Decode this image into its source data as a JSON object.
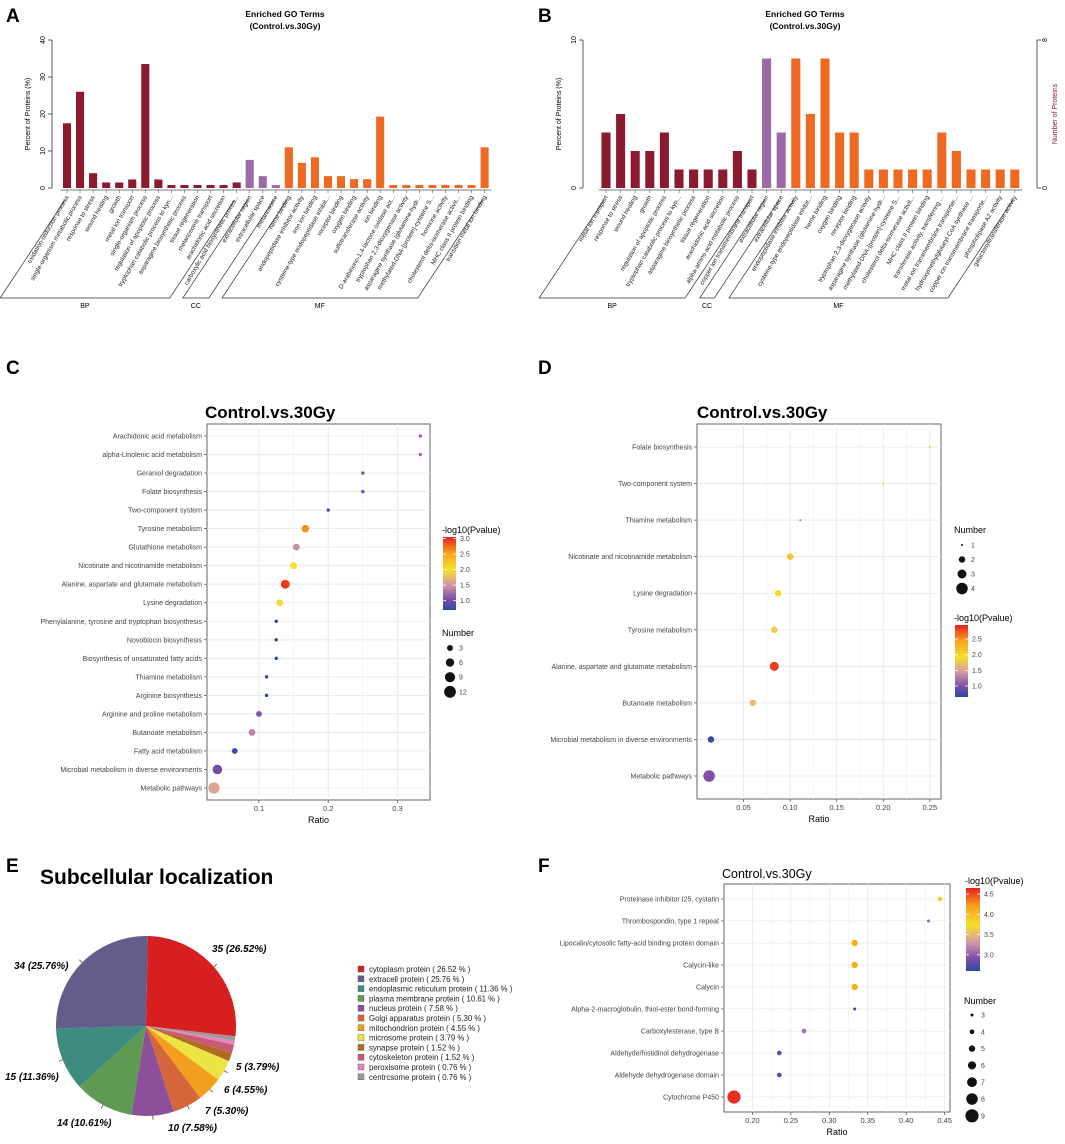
{
  "panels": {
    "a": "A",
    "b": "B",
    "c": "C",
    "d": "D",
    "e": "E",
    "f": "F"
  },
  "colors": {
    "BP": "#8b1a2e",
    "CC": "#9b6aa6",
    "MF": "#ee6a22"
  },
  "chart_data": [
    {
      "id": "A",
      "type": "bar",
      "title": "Enriched GO Terms",
      "subtitle": "(Control.vs.30Gy)",
      "ylabel": "Percent of Proteins (%)",
      "ylim": [
        0,
        40
      ],
      "yticks": [
        0,
        10,
        20,
        30,
        40
      ],
      "groups": [
        {
          "name": "BP",
          "categories": [
            "oxidation-reduction process",
            "single-organism metabolic process",
            "response to stress",
            "wound healing",
            "growth",
            "metal ion transport",
            "single-organism process",
            "regulation of apoptotic process",
            "tryptophan catabolic process to kyn...",
            "asparagine biosynthetic process",
            "tissue regeneration",
            "melanosome transport",
            "arachidonic acid secretion",
            "carboxylic acid biosynthetic proces..."
          ],
          "values": [
            17.5,
            26,
            4,
            1.5,
            1.5,
            2.3,
            33.5,
            2.3,
            0.8,
            0.8,
            0.8,
            0.8,
            0.8,
            1.5
          ]
        },
        {
          "name": "CC",
          "categories": [
            "extracellular region",
            "extracellular space",
            "melanosome"
          ],
          "values": [
            7.6,
            3.2,
            0.8
          ]
        },
        {
          "name": "MF",
          "categories": [
            "heme binding",
            "endopeptidase inhibitor activity",
            "iron ion binding",
            "cysteine-type endopeptidase inhibit...",
            "receptor binding",
            "oxygen binding",
            "sulfotransferase activity",
            "ion binding",
            "D-arabinono-1,4-lactone oxidase act...",
            "tryptophan 2,3-dioxygenase activity",
            "asparagine synthase (glutamine-hydr...",
            "methylated-DNA-[protein]-cysteine S...",
            "hormone activity",
            "cholesterol delta-isomerase activit...",
            "MHC class II protein binding",
            "transition metal ion binding"
          ],
          "values": [
            11,
            6.8,
            8.3,
            3.2,
            3.2,
            2.4,
            2.4,
            19.3,
            0.8,
            0.8,
            0.8,
            0.8,
            0.8,
            0.8,
            0.8,
            11
          ]
        }
      ]
    },
    {
      "id": "B",
      "type": "bar",
      "title": "Enriched GO Terms",
      "subtitle": "(Control.vs.30Gy)",
      "ylabel": "Percent of Proteins (%)",
      "ylim": [
        0,
        10
      ],
      "yticks": [
        0,
        10
      ],
      "y2label": "Number of Proteins",
      "y2lim": [
        0,
        8
      ],
      "y2ticks": [
        0,
        8
      ],
      "groups": [
        {
          "name": "BP",
          "categories": [
            "metal ion transport",
            "response to stress",
            "wound healing",
            "growth",
            "regulation of apoptotic process",
            "tryptophan catabolic process to kyn...",
            "asparagine biosynthetic process",
            "tissue regeneration",
            "arachidonic acid secretion",
            "alpha-amino acid metabolic process",
            "copper ion transmembrane transport"
          ],
          "values": [
            3.75,
            5,
            2.5,
            2.5,
            3.75,
            1.25,
            1.25,
            1.25,
            1.25,
            2.5,
            1.25
          ]
        },
        {
          "name": "CC",
          "categories": [
            "extracellular region",
            "extracellular space"
          ],
          "values": [
            8.75,
            3.75
          ]
        },
        {
          "name": "MF",
          "categories": [
            "endopeptidase inhibitor activity",
            "cysteine-type endopeptidase inhibit...",
            "heme binding",
            "oxygen binding",
            "receptor binding",
            "tryptophan 2,3-dioxygenase activity",
            "asparagine synthase (glutamine-hydr...",
            "methylated-DNA-[protein]-cysteine S...",
            "cholesterol delta-isomerase activit...",
            "MHC class II protein binding",
            "transferase activity, transferring ...",
            "metal ion transmembrane transporter...",
            "hydroxymethylglutaryl-CoA synthase ...",
            "copper ion transmembrane transporte...",
            "phospholipase A2 activity",
            "galactosyltransferase activity"
          ],
          "values": [
            8.75,
            5,
            8.75,
            3.75,
            3.75,
            1.25,
            1.25,
            1.25,
            1.25,
            1.25,
            3.75,
            2.5,
            1.25,
            1.25,
            1.25,
            1.25
          ]
        }
      ]
    },
    {
      "id": "C",
      "type": "scatter",
      "title": "Control.vs.30Gy",
      "xlabel": "Ratio",
      "xlim": [
        0.025,
        0.347
      ],
      "xticks": [
        "0.1",
        "0.2",
        "0.3"
      ],
      "color_title": "-log10(Pvalue)",
      "color_ticks": [
        "3.0",
        "2.5",
        "2.0",
        "1.5",
        "1.0"
      ],
      "color_range": [
        0.7,
        3.05
      ],
      "size_title": "Number",
      "size_ticks": [
        3,
        6,
        9,
        12
      ],
      "points": [
        {
          "term": "Arachidonic acid metabolism",
          "ratio": 0.333,
          "number": 1,
          "logp": 1.2
        },
        {
          "term": "alpha-Linolenic acid metabolism",
          "ratio": 0.333,
          "number": 1,
          "logp": 1.2
        },
        {
          "term": "Geraniol degradation",
          "ratio": 0.25,
          "number": 1,
          "logp": 1.0
        },
        {
          "term": "Folate biosynthesis",
          "ratio": 0.25,
          "number": 1,
          "logp": 1.0
        },
        {
          "term": "Two-component system",
          "ratio": 0.2,
          "number": 1,
          "logp": 0.9
        },
        {
          "term": "Tyrosine metabolism",
          "ratio": 0.167,
          "number": 5,
          "logp": 2.6
        },
        {
          "term": "Glutathione metabolism",
          "ratio": 0.154,
          "number": 4,
          "logp": 1.45
        },
        {
          "term": "Nicotinate and nicotinamide metabolism",
          "ratio": 0.15,
          "number": 4,
          "logp": 2.0
        },
        {
          "term": "Alanine, aspartate and glutamate metabolism",
          "ratio": 0.138,
          "number": 7,
          "logp": 2.95
        },
        {
          "term": "Lysine degradation",
          "ratio": 0.13,
          "number": 4,
          "logp": 1.95
        },
        {
          "term": "Phenylalanine, tyrosine and tryptophan biosynthesis",
          "ratio": 0.125,
          "number": 1,
          "logp": 0.7
        },
        {
          "term": "Novobiocin biosynthesis",
          "ratio": 0.125,
          "number": 1,
          "logp": 0.7
        },
        {
          "term": "Biosynthesis of unsaturated fatty acids",
          "ratio": 0.125,
          "number": 1,
          "logp": 0.7
        },
        {
          "term": "Thiamine metabolism",
          "ratio": 0.111,
          "number": 1,
          "logp": 0.7
        },
        {
          "term": "Arginine biosynthesis",
          "ratio": 0.111,
          "number": 1,
          "logp": 0.7
        },
        {
          "term": "Arginine and proline metabolism",
          "ratio": 0.1,
          "number": 3,
          "logp": 1.1
        },
        {
          "term": "Butanoate metabolism",
          "ratio": 0.09,
          "number": 4,
          "logp": 1.4
        },
        {
          "term": "Fatty acid metabolism",
          "ratio": 0.065,
          "number": 3,
          "logp": 0.8
        },
        {
          "term": "Microbial metabolism in diverse environments",
          "ratio": 0.04,
          "number": 8,
          "logp": 1.0
        },
        {
          "term": "Metabolic pathways",
          "ratio": 0.035,
          "number": 11,
          "logp": 1.6
        }
      ]
    },
    {
      "id": "D",
      "type": "scatter",
      "title": "Control.vs.30Gy",
      "xlabel": "Ratio",
      "xlim": [
        0.0,
        0.262
      ],
      "xticks": [
        "0.05",
        "0.10",
        "0.15",
        "0.20",
        "0.25"
      ],
      "color_title": "-log10(Pvalue)",
      "color_ticks": [
        "2.5",
        "2.0",
        "1.5",
        "1.0"
      ],
      "color_range": [
        0.65,
        2.95
      ],
      "size_title": "Number",
      "size_ticks": [
        1,
        2,
        3,
        4
      ],
      "points": [
        {
          "term": "Folate biosynthesis",
          "ratio": 0.25,
          "number": 1,
          "logp": 2.1
        },
        {
          "term": "Two-component system",
          "ratio": 0.2,
          "number": 1,
          "logp": 2.1
        },
        {
          "term": "Thiamine metabolism",
          "ratio": 0.111,
          "number": 1,
          "logp": 1.2
        },
        {
          "term": "Nicotinate and nicotinamide metabolism",
          "ratio": 0.1,
          "number": 2,
          "logp": 2.15
        },
        {
          "term": "Lysine degradation",
          "ratio": 0.087,
          "number": 2,
          "logp": 1.95
        },
        {
          "term": "Tyrosine metabolism",
          "ratio": 0.083,
          "number": 2,
          "logp": 1.8
        },
        {
          "term": "Alanine, aspartate and glutamate metabolism",
          "ratio": 0.083,
          "number": 3,
          "logp": 2.85
        },
        {
          "term": "Butanoate metabolism",
          "ratio": 0.06,
          "number": 2,
          "logp": 1.7
        },
        {
          "term": "Microbial metabolism in diverse environments",
          "ratio": 0.015,
          "number": 2,
          "logp": 0.7
        },
        {
          "term": "Metabolic pathways",
          "ratio": 0.013,
          "number": 4,
          "logp": 1.0
        }
      ]
    },
    {
      "id": "E",
      "type": "pie",
      "title": "Subcellular localization",
      "slices": [
        {
          "name": "cytoplasm protein",
          "count": 35,
          "percent": 26.52,
          "label": "35 (26.52%)",
          "legend": "cytoplasm protein  ( 26.52 % )",
          "color": "#d71f1f"
        },
        {
          "name": "extracell protein",
          "count": 34,
          "percent": 25.76,
          "label": "34 (25.76%)",
          "legend": "extracell protein  ( 25.76 % )",
          "color": "#625d8a"
        },
        {
          "name": "endoplasmic reticulum protein",
          "count": 15,
          "percent": 11.36,
          "label": "15 (11.36%)",
          "legend": "endoplasmic reticulum protein  ( 11.36 % )",
          "color": "#3e8c80"
        },
        {
          "name": "plasma membrane protein",
          "count": 14,
          "percent": 10.61,
          "label": "14 (10.61%)",
          "legend": "plasma membrane protein  ( 10.61 % )",
          "color": "#5e9a54"
        },
        {
          "name": "nucleus protein",
          "count": 10,
          "percent": 7.58,
          "label": "10 (7.58%)",
          "legend": "nucleus protein  ( 7.58 % )",
          "color": "#8c4f99"
        },
        {
          "name": "Golgi apparatus protein",
          "count": 7,
          "percent": 5.3,
          "label": "7 (5.30%)",
          "legend": "Golgi apparatus protein  ( 5.30 % )",
          "color": "#d5663a"
        },
        {
          "name": "mitochondrion protein",
          "count": 6,
          "percent": 4.55,
          "label": "6 (4.55%)",
          "legend": "mitochondrion protein  ( 4.55 % )",
          "color": "#f29f1f"
        },
        {
          "name": "microsome protein",
          "count": 5,
          "percent": 3.79,
          "label": "5 (3.79%)",
          "legend": "microsome protein  ( 3.79 % )",
          "color": "#ece444"
        },
        {
          "name": "synapse protein",
          "count": 2,
          "percent": 1.52,
          "label": "",
          "legend": "synapse protein  ( 1.52 % )",
          "color": "#b06a22"
        },
        {
          "name": "cytoskeleton protein",
          "count": 2,
          "percent": 1.52,
          "label": "",
          "legend": "cytoskeleton protein  ( 1.52 % )",
          "color": "#c95a72"
        },
        {
          "name": "peroxisome protein",
          "count": 1,
          "percent": 0.76,
          "label": "",
          "legend": "peroxisome protein  ( 0.76 % )",
          "color": "#e486c2"
        },
        {
          "name": "centrosome protein",
          "count": 1,
          "percent": 0.76,
          "label": "",
          "legend": "centrcsome protein  ( 0.76 % )",
          "color": "#9a9a9a"
        }
      ]
    },
    {
      "id": "F",
      "type": "scatter",
      "title": "Control.vs.30Gy",
      "xlabel": "Ratio",
      "xlim": [
        0.163,
        0.457
      ],
      "xticks": [
        "0.20",
        "0.25",
        "0.30",
        "0.35",
        "0.40",
        "0.45"
      ],
      "color_title": "-log10(Pvalue)",
      "color_ticks": [
        "4.5",
        "4.0",
        "3.5",
        "3.0"
      ],
      "color_range": [
        2.6,
        4.65
      ],
      "size_title": "Number",
      "size_ticks": [
        3,
        4,
        5,
        6,
        7,
        8,
        9
      ],
      "points": [
        {
          "term": "Proteinase inhibitor I25, cystatin",
          "ratio": 0.444,
          "number": 4,
          "logp": 3.85
        },
        {
          "term": "Thrombospondin, type 1 repeat",
          "ratio": 0.429,
          "number": 3,
          "logp": 3.0
        },
        {
          "term": "Lipocalin/cytosolic fatty-acid binding protein domain",
          "ratio": 0.333,
          "number": 5,
          "logp": 4.1
        },
        {
          "term": "Calycin-like",
          "ratio": 0.333,
          "number": 5,
          "logp": 4.1
        },
        {
          "term": "Calycin",
          "ratio": 0.333,
          "number": 5,
          "logp": 4.1
        },
        {
          "term": "Alpha-2-macroglobulin, thiol-ester bond-forming",
          "ratio": 0.333,
          "number": 3,
          "logp": 2.6
        },
        {
          "term": "Carboxylesterase, type B",
          "ratio": 0.267,
          "number": 4,
          "logp": 3.1
        },
        {
          "term": "Aldehyde/histidinol dehydrogenase",
          "ratio": 0.235,
          "number": 4,
          "logp": 2.8
        },
        {
          "term": "Aldehyde dehydrogenase domain",
          "ratio": 0.235,
          "number": 4,
          "logp": 2.8
        },
        {
          "term": "Cytochrome P450",
          "ratio": 0.176,
          "number": 9,
          "logp": 4.6
        }
      ]
    }
  ]
}
